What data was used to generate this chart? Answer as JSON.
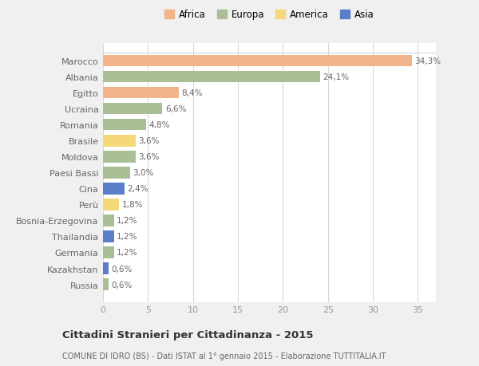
{
  "countries": [
    "Marocco",
    "Albania",
    "Egitto",
    "Ucraina",
    "Romania",
    "Brasile",
    "Moldova",
    "Paesi Bassi",
    "Cina",
    "Perù",
    "Bosnia-Erzegovina",
    "Thailandia",
    "Germania",
    "Kazakhstan",
    "Russia"
  ],
  "values": [
    34.3,
    24.1,
    8.4,
    6.6,
    4.8,
    3.6,
    3.6,
    3.0,
    2.4,
    1.8,
    1.2,
    1.2,
    1.2,
    0.6,
    0.6
  ],
  "labels": [
    "34,3%",
    "24,1%",
    "8,4%",
    "6,6%",
    "4,8%",
    "3,6%",
    "3,6%",
    "3,0%",
    "2,4%",
    "1,8%",
    "1,2%",
    "1,2%",
    "1,2%",
    "0,6%",
    "0,6%"
  ],
  "colors": [
    "#F2B48A",
    "#ABBF96",
    "#F2B48A",
    "#ABBF96",
    "#ABBF96",
    "#F5D87A",
    "#ABBF96",
    "#ABBF96",
    "#5B7EC9",
    "#F5D87A",
    "#ABBF96",
    "#5B7EC9",
    "#ABBF96",
    "#5B7EC9",
    "#ABBF96"
  ],
  "legend_labels": [
    "Africa",
    "Europa",
    "America",
    "Asia"
  ],
  "legend_colors": [
    "#F2B48A",
    "#ABBF96",
    "#F5D87A",
    "#5B7EC9"
  ],
  "title": "Cittadini Stranieri per Cittadinanza - 2015",
  "subtitle": "COMUNE DI IDRO (BS) - Dati ISTAT al 1° gennaio 2015 - Elaborazione TUTTITALIA.IT",
  "xlim": [
    0,
    37
  ],
  "xticks": [
    0,
    5,
    10,
    15,
    20,
    25,
    30,
    35
  ],
  "background_color": "#f0f0f0",
  "plot_bg_color": "#ffffff",
  "grid_color": "#d8d8d8"
}
